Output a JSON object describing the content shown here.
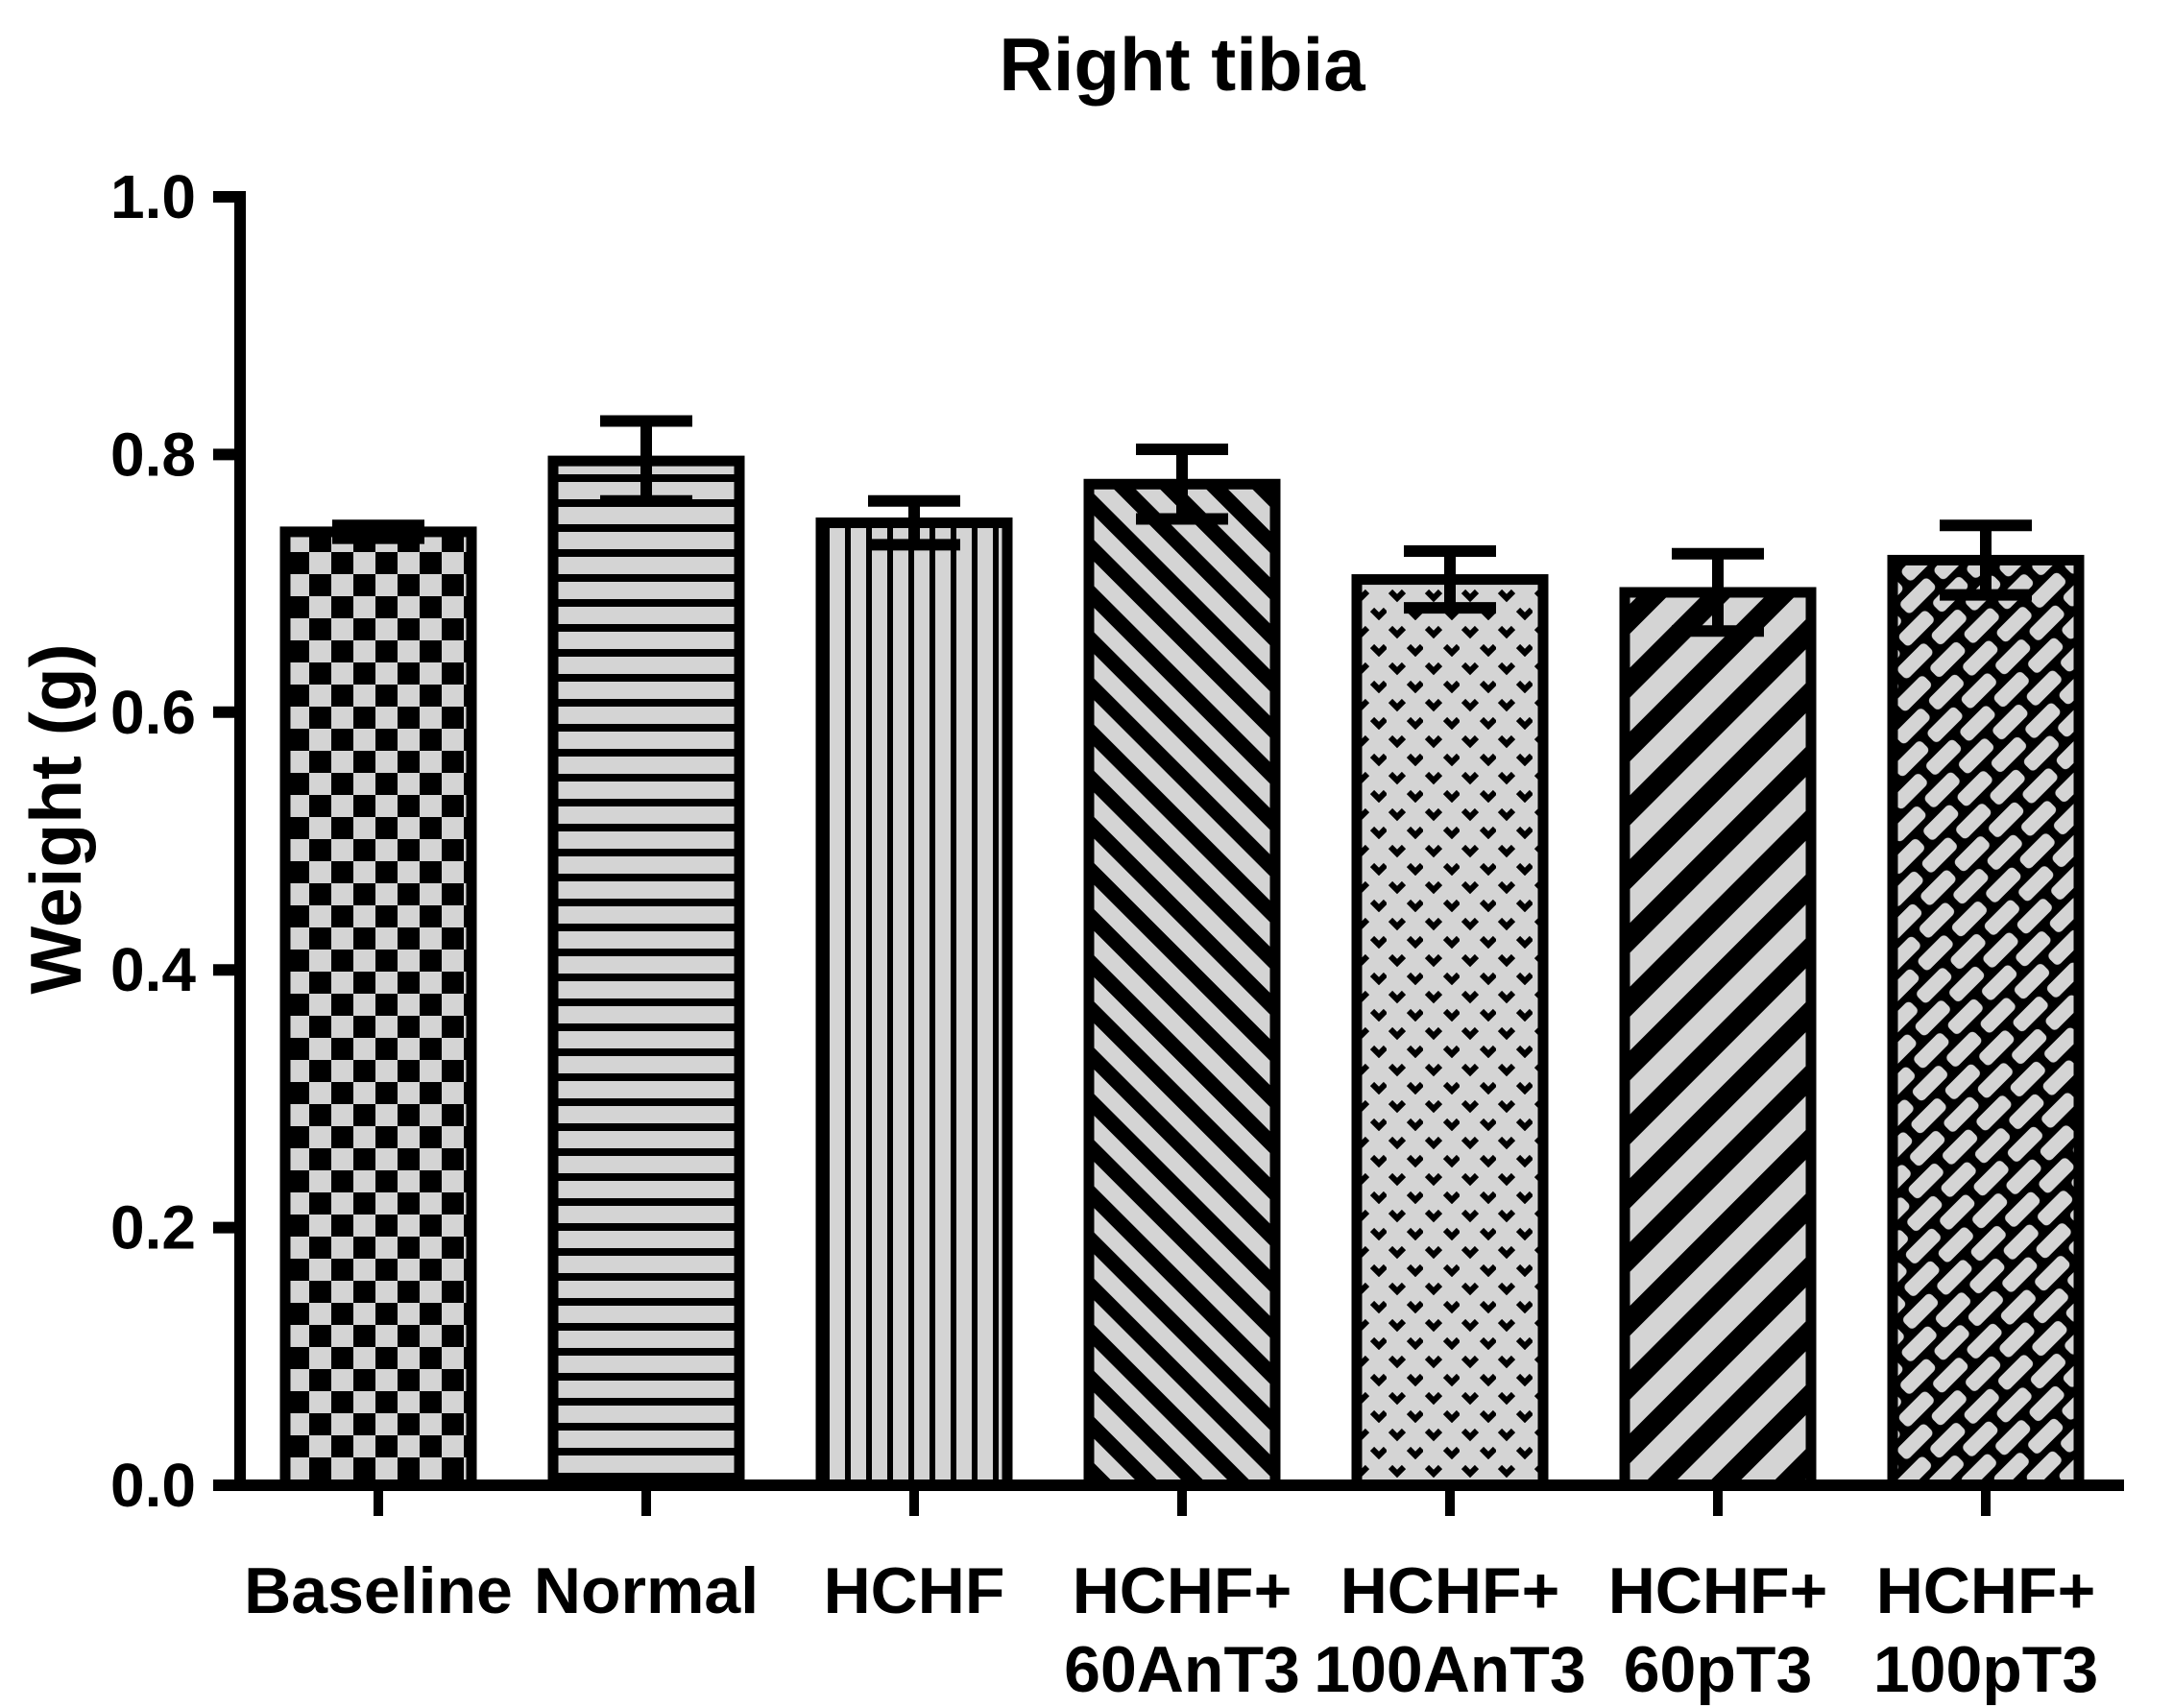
{
  "chart_data": {
    "type": "bar",
    "title": "Right tibia",
    "xlabel": "",
    "ylabel": "Weight (g)",
    "ylim": [
      0.0,
      1.0
    ],
    "yticks": [
      0.0,
      0.2,
      0.4,
      0.6,
      0.8,
      1.0
    ],
    "ytick_labels": [
      "0.0",
      "0.2",
      "0.4",
      "0.6",
      "0.8",
      "1.0"
    ],
    "categories": [
      "Baseline",
      "Normal",
      "HCHF",
      "HCHF+ 60AnT3",
      "HCHF+ 100AnT3",
      "HCHF+ 60pT3",
      "HCHF+ 100pT3"
    ],
    "category_lines": [
      [
        "Baseline"
      ],
      [
        "Normal"
      ],
      [
        "HCHF"
      ],
      [
        "HCHF+",
        "60AnT3"
      ],
      [
        "HCHF+",
        "100AnT3"
      ],
      [
        "HCHF+",
        "60pT3"
      ],
      [
        "HCHF+",
        "100pT3"
      ]
    ],
    "series": [
      {
        "name": "Weight (g)",
        "values": [
          0.74,
          0.795,
          0.747,
          0.777,
          0.703,
          0.693,
          0.718
        ],
        "errors": [
          0.005,
          0.031,
          0.017,
          0.027,
          0.022,
          0.03,
          0.027
        ]
      }
    ],
    "bar_patterns": [
      "checkerboard",
      "horizontal-stripes",
      "vertical-stripes",
      "diagonal-stripes-down",
      "stipple-dots",
      "diagonal-stripes-up",
      "diagonal-bricks"
    ],
    "bar_fill": "#d4d4d4",
    "pattern_color": "#000000",
    "axis_color": "#000000",
    "background": "#ffffff",
    "grid": false,
    "legend": "none",
    "error_bars": "plus-minus with caps"
  }
}
